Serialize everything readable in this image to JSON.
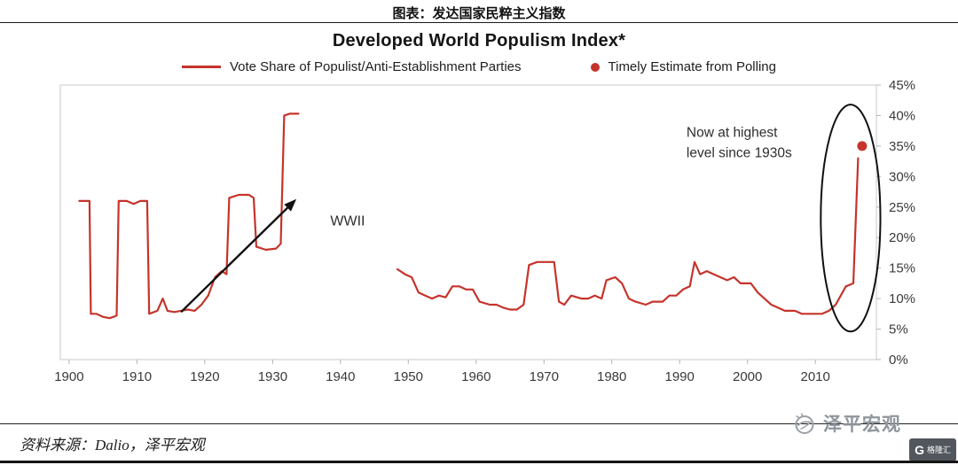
{
  "page": {
    "top_title": "图表：发达国家民粹主义指数",
    "source_note": "资料来源：Dalio，泽平宏观",
    "watermark_text": "泽平宏观",
    "corner_logo_letter": "G",
    "corner_logo_text": "格隆汇"
  },
  "chart": {
    "title": "Developed World Populism Index*"
  },
  "chart_data": {
    "type": "line",
    "title": "Developed World Populism Index*",
    "xlabel": "",
    "ylabel": "",
    "x_range": [
      1898.7,
      2019
    ],
    "y_range": [
      0,
      45
    ],
    "x_ticks": [
      1900,
      1910,
      1920,
      1930,
      1940,
      1950,
      1960,
      1970,
      1980,
      1990,
      2000,
      2010
    ],
    "y_ticks": [
      0,
      5,
      10,
      15,
      20,
      25,
      30,
      35,
      40,
      45
    ],
    "y_suffix": "%",
    "grid": false,
    "legend_position": "top",
    "line_color": "#c5342b",
    "annotation_color": "#111111",
    "series": [
      {
        "name": "Vote Share of Populist/Anti-Establishment Parties",
        "segments": [
          [
            [
              1901.5,
              26
            ],
            [
              1903,
              26
            ],
            [
              1903.2,
              7.5
            ],
            [
              1904,
              7.5
            ],
            [
              1905,
              7
            ],
            [
              1906,
              6.8
            ],
            [
              1907,
              7.2
            ],
            [
              1907.3,
              26
            ],
            [
              1908.5,
              26
            ],
            [
              1909.5,
              25.5
            ],
            [
              1910.5,
              26
            ],
            [
              1911.5,
              26
            ],
            [
              1911.8,
              7.5
            ],
            [
              1913,
              8
            ],
            [
              1913.8,
              10
            ],
            [
              1914.5,
              8
            ],
            [
              1915.5,
              7.8
            ],
            [
              1916.5,
              8
            ],
            [
              1917.5,
              8.2
            ],
            [
              1918.5,
              8
            ],
            [
              1919.5,
              9
            ],
            [
              1920.5,
              10.5
            ],
            [
              1921.5,
              13.5
            ],
            [
              1922.5,
              14.5
            ],
            [
              1923.2,
              14
            ],
            [
              1923.6,
              26.5
            ],
            [
              1925,
              27
            ],
            [
              1926.5,
              27
            ],
            [
              1927.2,
              26.5
            ],
            [
              1927.6,
              18.5
            ],
            [
              1929,
              18
            ],
            [
              1930.5,
              18.2
            ],
            [
              1931.2,
              19
            ],
            [
              1931.7,
              40
            ],
            [
              1932.5,
              40.3
            ],
            [
              1933.8,
              40.3
            ]
          ],
          [
            [
              1948.4,
              14.8
            ],
            [
              1949.5,
              14
            ],
            [
              1950.5,
              13.5
            ],
            [
              1951.5,
              11
            ],
            [
              1952.5,
              10.5
            ],
            [
              1953.5,
              10
            ],
            [
              1954.5,
              10.5
            ],
            [
              1955.5,
              10.2
            ],
            [
              1956.5,
              12
            ],
            [
              1957.5,
              12
            ],
            [
              1958.5,
              11.5
            ],
            [
              1959.5,
              11.5
            ],
            [
              1960.5,
              9.5
            ],
            [
              1962,
              9
            ],
            [
              1963,
              9
            ],
            [
              1964,
              8.5
            ],
            [
              1965,
              8.2
            ],
            [
              1966,
              8.2
            ],
            [
              1967,
              9
            ],
            [
              1967.8,
              15.5
            ],
            [
              1969,
              16
            ],
            [
              1970.5,
              16
            ],
            [
              1971.5,
              16
            ],
            [
              1972.2,
              9.5
            ],
            [
              1973,
              9
            ],
            [
              1974,
              10.5
            ],
            [
              1975.5,
              10
            ],
            [
              1976.5,
              10
            ],
            [
              1977.5,
              10.5
            ],
            [
              1978.5,
              10
            ],
            [
              1979.2,
              13
            ],
            [
              1980.5,
              13.5
            ],
            [
              1981.5,
              12.5
            ],
            [
              1982.5,
              10
            ],
            [
              1983.5,
              9.5
            ],
            [
              1985,
              9
            ],
            [
              1986,
              9.5
            ],
            [
              1987.5,
              9.5
            ],
            [
              1988.5,
              10.5
            ],
            [
              1989.5,
              10.5
            ],
            [
              1990.5,
              11.5
            ],
            [
              1991.5,
              12
            ],
            [
              1992.2,
              16
            ],
            [
              1993,
              14
            ],
            [
              1994,
              14.5
            ],
            [
              1995,
              14
            ],
            [
              1996,
              13.5
            ],
            [
              1997,
              13
            ],
            [
              1998,
              13.5
            ],
            [
              1999,
              12.5
            ],
            [
              2000.5,
              12.5
            ],
            [
              2001.5,
              11
            ],
            [
              2002.5,
              10
            ],
            [
              2003.5,
              9
            ],
            [
              2004.5,
              8.5
            ],
            [
              2005.5,
              8
            ],
            [
              2007,
              8
            ],
            [
              2008,
              7.5
            ],
            [
              2009.5,
              7.5
            ],
            [
              2011,
              7.5
            ],
            [
              2012,
              8
            ],
            [
              2013,
              9
            ],
            [
              2014.5,
              12
            ],
            [
              2015.6,
              12.5
            ],
            [
              2016.3,
              33
            ]
          ]
        ]
      }
    ],
    "point_estimate": {
      "name": "Timely Estimate from Polling",
      "x": 2016.9,
      "y": 35
    },
    "annotations": {
      "wwii": {
        "text": "WWII",
        "x": 1938.5,
        "y": 22
      },
      "highest": {
        "lines": [
          "Now at highest",
          "level since 1930s"
        ],
        "x": 1991,
        "y": 36.5,
        "line_gap_pct": 3.3
      },
      "arrow": {
        "from": [
          1916.5,
          7.8
        ],
        "to": [
          1933.5,
          26.3
        ]
      },
      "ellipse": {
        "cx": 2015.2,
        "cy": 23.2,
        "rx": 4.4,
        "ry": 18.6
      }
    }
  }
}
